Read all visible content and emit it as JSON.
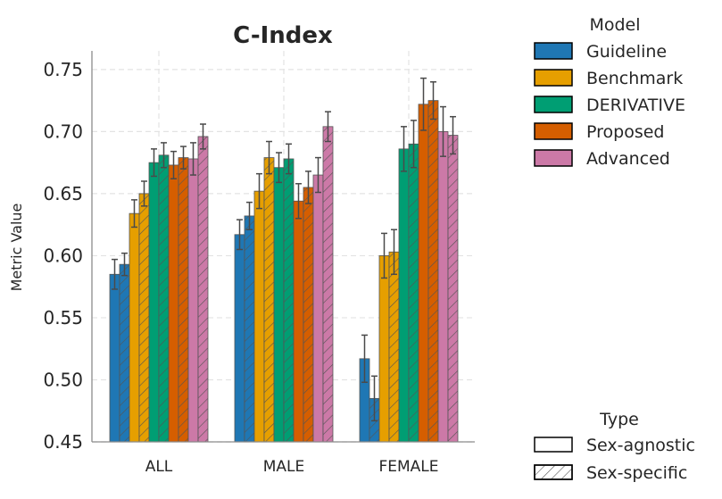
{
  "chart_data": {
    "type": "bar",
    "title": "C-Index",
    "xlabel": "",
    "ylabel": "Metric Value",
    "ylim": [
      0.45,
      0.765
    ],
    "yticks": [
      "0.45",
      "0.50",
      "0.55",
      "0.60",
      "0.65",
      "0.70",
      "0.75"
    ],
    "grid": true,
    "categories": [
      "ALL",
      "MALE",
      "FEMALE"
    ],
    "legend_model_title": "Model",
    "legend_type_title": "Type",
    "types": [
      {
        "name": "Sex-agnostic",
        "hatch": false
      },
      {
        "name": "Sex-specific",
        "hatch": true
      }
    ],
    "series": [
      {
        "name": "Guideline",
        "color": "#1f77b4",
        "values": [
          [
            0.585,
            0.593
          ],
          [
            0.617,
            0.632
          ],
          [
            0.517,
            0.485
          ]
        ],
        "errors": [
          [
            0.012,
            0.009
          ],
          [
            0.012,
            0.011
          ],
          [
            0.019,
            0.018
          ]
        ]
      },
      {
        "name": "Benchmark",
        "color": "#e69f00",
        "values": [
          [
            0.634,
            0.65
          ],
          [
            0.652,
            0.679
          ],
          [
            0.6,
            0.603
          ]
        ],
        "errors": [
          [
            0.011,
            0.01
          ],
          [
            0.014,
            0.013
          ],
          [
            0.018,
            0.018
          ]
        ]
      },
      {
        "name": "DERIVATIVE",
        "color": "#009e73",
        "values": [
          [
            0.675,
            0.681
          ],
          [
            0.671,
            0.678
          ],
          [
            0.686,
            0.69
          ]
        ],
        "errors": [
          [
            0.011,
            0.01
          ],
          [
            0.012,
            0.012
          ],
          [
            0.018,
            0.019
          ]
        ]
      },
      {
        "name": "Proposed",
        "color": "#d55e00",
        "values": [
          [
            0.673,
            0.679
          ],
          [
            0.644,
            0.655
          ],
          [
            0.722,
            0.725
          ]
        ],
        "errors": [
          [
            0.011,
            0.009
          ],
          [
            0.014,
            0.013
          ],
          [
            0.021,
            0.015
          ]
        ]
      },
      {
        "name": "Advanced",
        "color": "#cc79a7",
        "values": [
          [
            0.678,
            0.696
          ],
          [
            0.665,
            0.704
          ],
          [
            0.7,
            0.697
          ]
        ],
        "errors": [
          [
            0.013,
            0.01
          ],
          [
            0.014,
            0.012
          ],
          [
            0.02,
            0.015
          ]
        ]
      }
    ]
  }
}
